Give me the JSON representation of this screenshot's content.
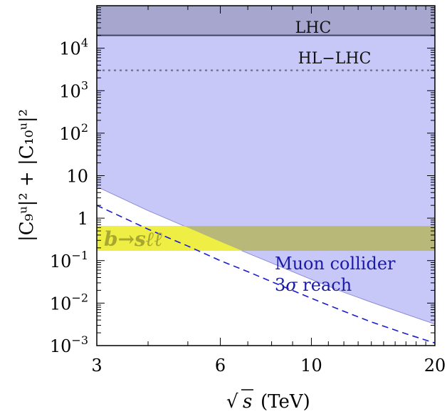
{
  "chart_data": {
    "type": "area",
    "x_scale": "log",
    "y_scale": "log",
    "xlim": [
      3,
      20
    ],
    "ylim": [
      0.001,
      100000
    ],
    "x_ticks": [
      {
        "value": 3,
        "label": "3"
      },
      {
        "value": 6,
        "label": "6"
      },
      {
        "value": 10,
        "label": "10"
      },
      {
        "value": 20,
        "label": "20"
      }
    ],
    "y_ticks": [
      {
        "value": 0.001,
        "base": "10",
        "exp": "−3"
      },
      {
        "value": 0.01,
        "base": "10",
        "exp": "−2"
      },
      {
        "value": 0.1,
        "base": "10",
        "exp": "−1"
      },
      {
        "value": 1,
        "base": "1",
        "exp": ""
      },
      {
        "value": 10,
        "base": "10",
        "exp": ""
      },
      {
        "value": 100,
        "base": "10",
        "exp": "2"
      },
      {
        "value": 1000,
        "base": "10",
        "exp": "3"
      },
      {
        "value": 10000,
        "base": "10",
        "exp": "4"
      }
    ],
    "xlabel": {
      "sqrt": "√",
      "var": "s",
      "unit": "(TeV)"
    },
    "ylabel": "|C₉ᵘ|² + |C₁₀ᵘ|²",
    "bands": [
      {
        "name": "LHC",
        "label": "LHC",
        "lower": 20000,
        "upper": 100000,
        "color": "#a6a6cf",
        "line": "solid"
      },
      {
        "name": "HL-LHC",
        "label": "HL−LHC",
        "lower": 3000,
        "color": "#777799",
        "line": "dotted"
      },
      {
        "name": "b->sll",
        "label": "b→sℓℓ",
        "lower": 0.17,
        "upper": 0.65,
        "color": "#b8b878"
      }
    ],
    "series": [
      {
        "name": "Muon collider 3σ reach",
        "style": "solid-fill",
        "color": "#c8c8f8",
        "x": [
          3,
          4,
          5,
          6,
          7,
          8,
          10,
          12,
          14,
          17,
          20
        ],
        "y": [
          5.5,
          1.5,
          0.6,
          0.28,
          0.15,
          0.088,
          0.036,
          0.018,
          0.0105,
          0.0055,
          0.0032
        ]
      },
      {
        "name": "dashed",
        "style": "dashed",
        "color": "#1a1ad0",
        "x": [
          3,
          4,
          5,
          6,
          7,
          8,
          10,
          12,
          14,
          17,
          20
        ],
        "y": [
          2.0,
          0.55,
          0.22,
          0.1,
          0.055,
          0.032,
          0.013,
          0.0064,
          0.0036,
          0.0019,
          0.00115
        ]
      }
    ],
    "annotations": {
      "muon_line1": "Muon collider",
      "muon_line2_num": "3",
      "muon_line2_sigma": "σ",
      "muon_line2_rest": " reach"
    }
  }
}
